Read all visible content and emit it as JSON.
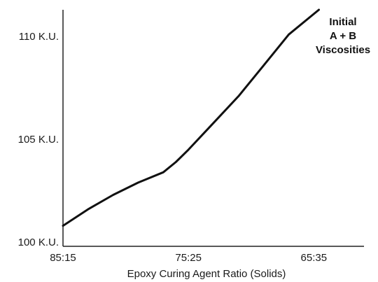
{
  "chart_data": {
    "type": "line",
    "title": "",
    "annotation": [
      "Initial",
      "A + B",
      "Viscosities"
    ],
    "xlabel": "Epoxy Curing Agent Ratio (Solids)",
    "ylabel": "",
    "x_tick_labels": [
      "85:15",
      "75:25",
      "65:35"
    ],
    "x_tick_values": [
      15,
      25,
      35
    ],
    "y_tick_labels": [
      "100 K.U.",
      "105 K.U.",
      "110 K.U."
    ],
    "y_tick_values": [
      100,
      105,
      110
    ],
    "xlim": [
      15,
      39
    ],
    "ylim": [
      99.8,
      111.3
    ],
    "grid": false,
    "line_color": "#111111",
    "series": [
      {
        "x": [
          15,
          17,
          19,
          21,
          23,
          24,
          25,
          27,
          29,
          31,
          33,
          35.4
        ],
        "y": [
          100.8,
          101.6,
          102.3,
          102.9,
          103.4,
          103.9,
          104.5,
          105.8,
          107.1,
          108.6,
          110.1,
          111.3
        ]
      }
    ]
  }
}
